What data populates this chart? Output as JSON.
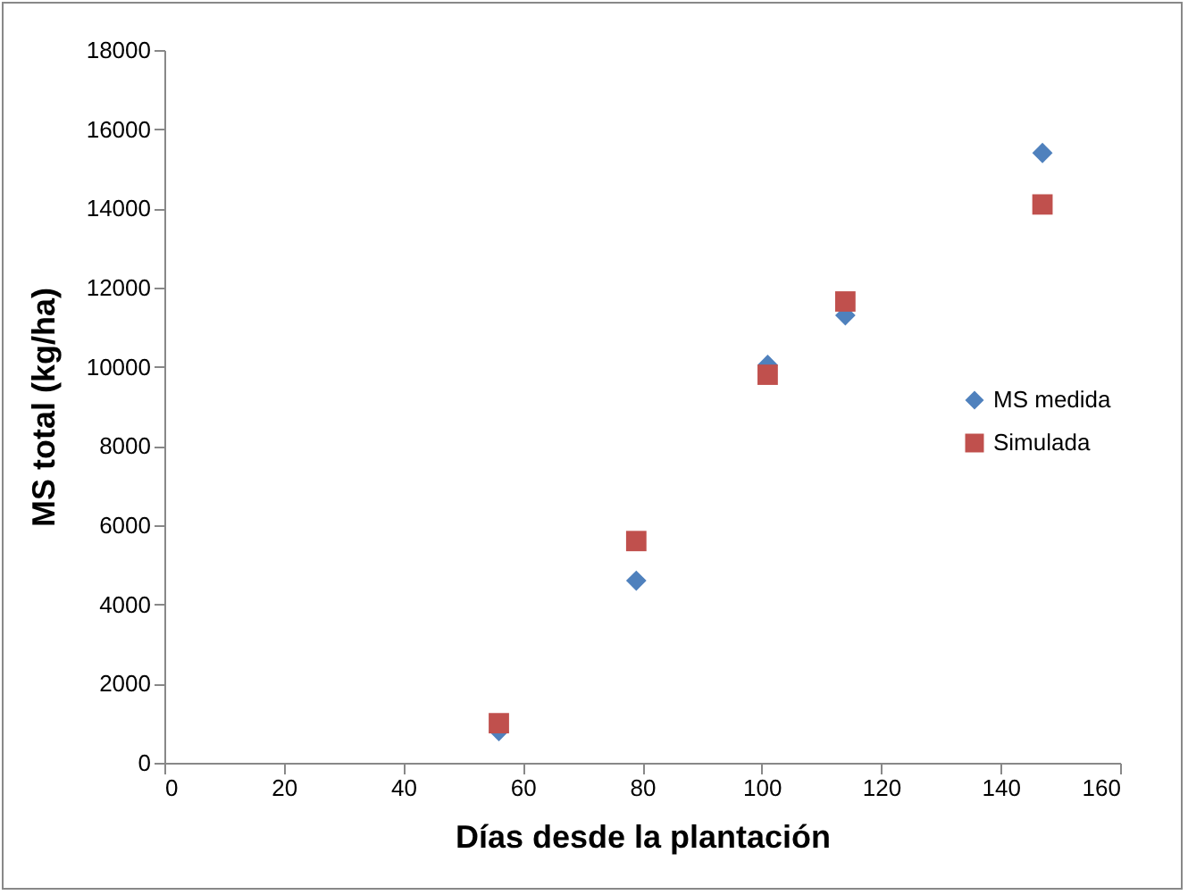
{
  "chart_data": {
    "type": "scatter",
    "xlabel": "Días desde la plantación",
    "ylabel": "MS total (kg/ha)",
    "x": [
      56,
      79,
      101,
      114,
      147
    ],
    "series": [
      {
        "name": "MS medida",
        "color": "#4f81bd",
        "marker": "diamond",
        "values": [
          800,
          4600,
          10050,
          11300,
          15400
        ]
      },
      {
        "name": "Simulada",
        "color": "#c0504d",
        "marker": "square",
        "values": [
          1000,
          5600,
          9800,
          11650,
          14100
        ]
      }
    ],
    "xlim": [
      0,
      160
    ],
    "xticks": [
      0,
      20,
      40,
      60,
      80,
      100,
      120,
      140,
      160
    ],
    "ylim": [
      0,
      18000
    ],
    "yticks": [
      0,
      2000,
      4000,
      6000,
      8000,
      10000,
      12000,
      14000,
      16000,
      18000
    ],
    "grid": false,
    "legend": "right"
  }
}
